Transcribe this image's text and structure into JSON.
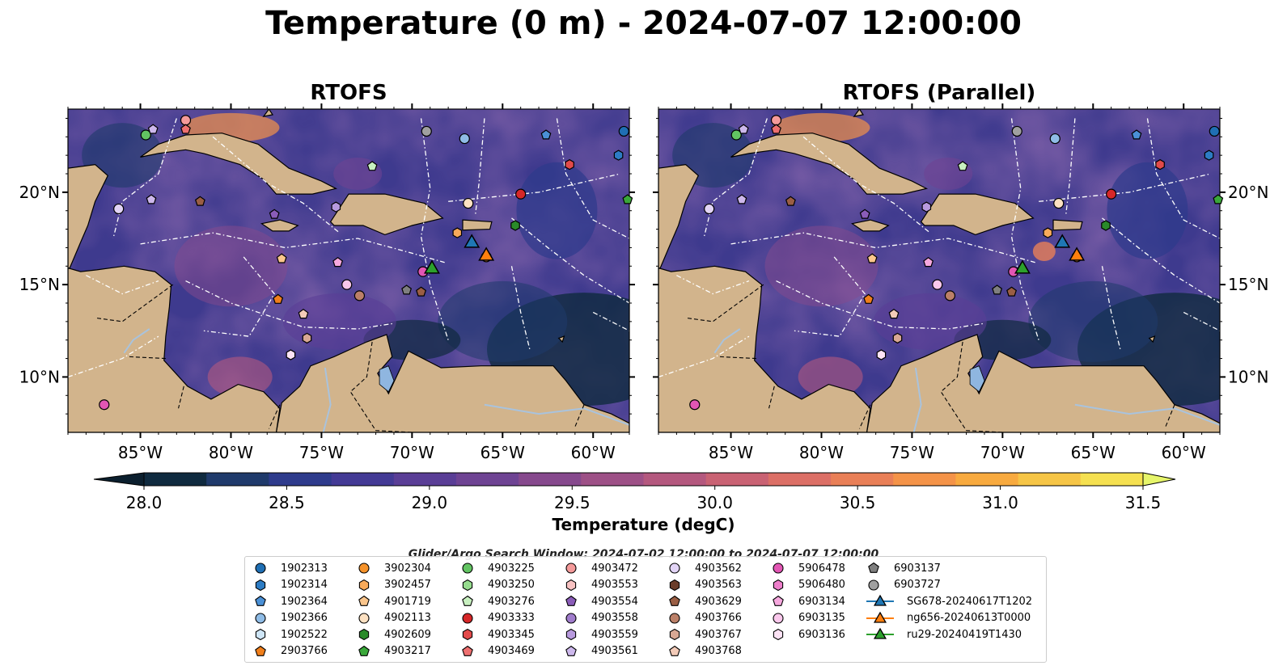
{
  "title": "Temperature (0 m) - 2024-07-07 12:00:00",
  "chart_data": [
    {
      "type": "heatmap",
      "title": "RTOFS",
      "lon_range": [
        -89,
        -58
      ],
      "lat_range": [
        7,
        24.5
      ],
      "x_ticks": [
        "85°W",
        "80°W",
        "75°W",
        "70°W",
        "65°W",
        "60°W"
      ],
      "y_ticks": [
        "20°N",
        "15°N",
        "10°N"
      ],
      "land_color": "#d2b48c",
      "eez_lines": "white dash-dot",
      "argo_floats": [
        {
          "id": "1902313",
          "lon": -58.3,
          "lat": 23.3
        },
        {
          "id": "1902364",
          "lon": -62.6,
          "lat": 23.1
        },
        {
          "id": "1902366",
          "lon": -67.1,
          "lat": 22.9
        },
        {
          "id": "6903727",
          "lon": -69.2,
          "lat": 23.3
        },
        {
          "id": "1902314",
          "lon": -58.6,
          "lat": 22.0
        },
        {
          "id": "4903345",
          "lon": -61.3,
          "lat": 21.5
        },
        {
          "id": "4903217",
          "lon": -58.1,
          "lat": 19.6
        },
        {
          "id": "4903333",
          "lon": -64.0,
          "lat": 19.9
        },
        {
          "id": "4902113",
          "lon": -66.9,
          "lat": 19.4
        },
        {
          "id": "4902609",
          "lon": -64.3,
          "lat": 18.2
        },
        {
          "id": "3902457",
          "lon": -67.5,
          "lat": 17.8
        },
        {
          "id": "5906478",
          "lon": -69.4,
          "lat": 15.7
        },
        {
          "id": "4903559",
          "lon": -74.2,
          "lat": 19.2
        },
        {
          "id": "4903276",
          "lon": -72.2,
          "lat": 21.4
        },
        {
          "id": "4903225",
          "lon": -84.7,
          "lat": 23.1
        },
        {
          "id": "4903561",
          "lon": -84.3,
          "lat": 23.4
        },
        {
          "id": "4903472",
          "lon": -82.5,
          "lat": 23.9
        },
        {
          "id": "4903469",
          "lon": -82.5,
          "lat": 23.4
        },
        {
          "id": "4903562",
          "lon": -86.2,
          "lat": 19.1
        },
        {
          "id": "4903561",
          "lon": -84.4,
          "lat": 19.6
        },
        {
          "id": "4903629",
          "lon": -81.7,
          "lat": 19.5
        },
        {
          "id": "4903554",
          "lon": -77.6,
          "lat": 18.8
        },
        {
          "id": "4901719",
          "lon": -77.2,
          "lat": 16.4
        },
        {
          "id": "2903766",
          "lon": -77.4,
          "lat": 14.2
        },
        {
          "id": "6903134",
          "lon": -74.1,
          "lat": 16.2
        },
        {
          "id": "6903135",
          "lon": -73.6,
          "lat": 15.0
        },
        {
          "id": "4903766",
          "lon": -72.9,
          "lat": 14.4
        },
        {
          "id": "6903137",
          "lon": -70.3,
          "lat": 14.7
        },
        {
          "id": "4903629",
          "lon": -69.5,
          "lat": 14.6
        },
        {
          "id": "3902304",
          "lon": -65.9,
          "lat": 16.5
        },
        {
          "id": "4903768",
          "lon": -76.0,
          "lat": 13.4
        },
        {
          "id": "4903767",
          "lon": -75.8,
          "lat": 12.1
        },
        {
          "id": "6903136",
          "lon": -76.7,
          "lat": 11.2
        },
        {
          "id": "5906478",
          "lon": -87.0,
          "lat": 8.5
        }
      ],
      "gliders": [
        {
          "id": "SG678-20240617T1202",
          "lon": -66.7,
          "lat": 17.2
        },
        {
          "id": "ng656-20240613T0000",
          "lon": -65.9,
          "lat": 16.5
        },
        {
          "id": "ru29-20240419T1430",
          "lon": -68.9,
          "lat": 15.8
        }
      ]
    },
    {
      "type": "heatmap",
      "title": "RTOFS (Parallel)",
      "lon_range": [
        -89,
        -58
      ],
      "lat_range": [
        7,
        24.5
      ],
      "x_ticks": [
        "85°W",
        "80°W",
        "75°W",
        "70°W",
        "65°W",
        "60°W"
      ],
      "y_ticks": [
        "20°N",
        "15°N",
        "10°N"
      ]
    }
  ],
  "colorbar": {
    "label": "Temperature (degC)",
    "min": 28.0,
    "max": 31.5,
    "ticks": [
      "28.0",
      "28.5",
      "29.0",
      "29.5",
      "30.0",
      "30.5",
      "31.0",
      "31.5"
    ],
    "colors": [
      "#0f2a3f",
      "#1f3a6b",
      "#2e3b8c",
      "#433a95",
      "#5a3e96",
      "#6e4393",
      "#86498d",
      "#9d5086",
      "#b4587e",
      "#c96273",
      "#dc6f66",
      "#e97f57",
      "#f49348",
      "#f8aa3f",
      "#f6c546",
      "#f5e050"
    ],
    "extend_under_color": "#0b1f2e",
    "extend_over_color": "#e6f56a"
  },
  "search_window": "Glider/Argo Search Window: 2024-07-02 12:00:00 to 2024-07-07 12:00:00",
  "legend": {
    "columns": [
      [
        {
          "label": "1902313",
          "marker": "circle",
          "color": "#1f6fb4"
        },
        {
          "label": "1902314",
          "marker": "hexagon",
          "color": "#2d7cc4"
        },
        {
          "label": "1902364",
          "marker": "pentagon",
          "color": "#4a90d6"
        },
        {
          "label": "1902366",
          "marker": "circle",
          "color": "#8fbce6"
        },
        {
          "label": "1902522",
          "marker": "hexagon",
          "color": "#cfe6f7"
        },
        {
          "label": "2903766",
          "marker": "pentagon",
          "color": "#f07f1b"
        }
      ],
      [
        {
          "label": "3902304",
          "marker": "circle",
          "color": "#f5922a"
        },
        {
          "label": "3902457",
          "marker": "hexagon",
          "color": "#f8aa5a"
        },
        {
          "label": "4901719",
          "marker": "pentagon",
          "color": "#fbc68c"
        },
        {
          "label": "4902113",
          "marker": "circle",
          "color": "#fde1c2"
        },
        {
          "label": "4902609",
          "marker": "hexagon",
          "color": "#2a8a2a"
        },
        {
          "label": "4903217",
          "marker": "pentagon",
          "color": "#3aa83a"
        }
      ],
      [
        {
          "label": "4903225",
          "marker": "circle",
          "color": "#62c462"
        },
        {
          "label": "4903250",
          "marker": "hexagon",
          "color": "#96dc8e"
        },
        {
          "label": "4903276",
          "marker": "pentagon",
          "color": "#c8f0c0"
        },
        {
          "label": "4903333",
          "marker": "circle",
          "color": "#d62728"
        },
        {
          "label": "4903345",
          "marker": "hexagon",
          "color": "#e24a4a"
        },
        {
          "label": "4903469",
          "marker": "pentagon",
          "color": "#ee7070"
        }
      ],
      [
        {
          "label": "4903472",
          "marker": "circle",
          "color": "#f49a9a"
        },
        {
          "label": "4903553",
          "marker": "hexagon",
          "color": "#f8c2c2"
        },
        {
          "label": "4903554",
          "marker": "pentagon",
          "color": "#8a5cb8"
        },
        {
          "label": "4903558",
          "marker": "circle",
          "color": "#a07ccc"
        },
        {
          "label": "4903559",
          "marker": "hexagon",
          "color": "#b89ade"
        },
        {
          "label": "4903561",
          "marker": "pentagon",
          "color": "#cdb8ec"
        }
      ],
      [
        {
          "label": "4903562",
          "marker": "circle",
          "color": "#e2d4f6"
        },
        {
          "label": "4903563",
          "marker": "hexagon",
          "color": "#6b3d2a"
        },
        {
          "label": "4903629",
          "marker": "pentagon",
          "color": "#9a5e44"
        },
        {
          "label": "4903766",
          "marker": "circle",
          "color": "#bb8068"
        },
        {
          "label": "4903767",
          "marker": "hexagon",
          "color": "#d8a894"
        },
        {
          "label": "4903768",
          "marker": "pentagon",
          "color": "#f3cbb8"
        }
      ],
      [
        {
          "label": "5906478",
          "marker": "circle",
          "color": "#e256b4"
        },
        {
          "label": "5906480",
          "marker": "hexagon",
          "color": "#ee7fcb"
        },
        {
          "label": "6903134",
          "marker": "pentagon",
          "color": "#f6a8de"
        },
        {
          "label": "6903135",
          "marker": "circle",
          "color": "#fac8ec"
        },
        {
          "label": "6903136",
          "marker": "hexagon",
          "color": "#fde3f5"
        }
      ],
      [
        {
          "label": "6903137",
          "marker": "pentagon",
          "color": "#7f7f7f"
        },
        {
          "label": "6903727",
          "marker": "circle",
          "color": "#a0a0a0"
        },
        {
          "label": "SG678-20240617T1202",
          "marker": "triangle",
          "color": "#1f77b4"
        },
        {
          "label": "ng656-20240613T0000",
          "marker": "triangle",
          "color": "#ff7f0e"
        },
        {
          "label": "ru29-20240419T1430",
          "marker": "triangle",
          "color": "#2ca02c"
        }
      ]
    ]
  }
}
